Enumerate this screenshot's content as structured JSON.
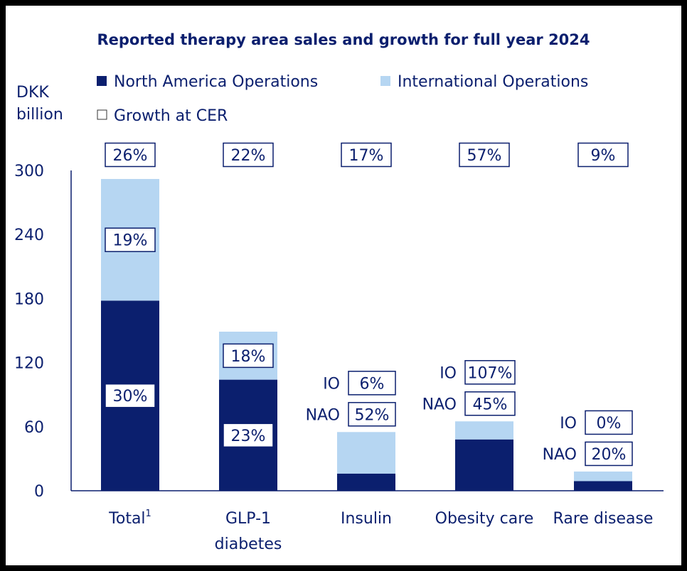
{
  "chart_data": {
    "type": "bar",
    "stacked": true,
    "title": "Reported therapy area sales and growth for full year 2024",
    "ylabel_line1": "DKK",
    "ylabel_line2": "billion",
    "ylim": [
      0,
      300
    ],
    "yticks": [
      "0",
      "60",
      "120",
      "180",
      "240",
      "300"
    ],
    "legend": {
      "nao": "North America Operations",
      "io": "International Operations",
      "growth": "Growth at CER"
    },
    "colors": {
      "nao": "#0b1f6e",
      "io": "#b6d6f2",
      "text": "#0b1f6e"
    },
    "categories": [
      {
        "label1": "Total",
        "sup": "1",
        "label2": "",
        "nao": 178,
        "io": 114,
        "total_growth": "26%",
        "nao_growth": "30%",
        "io_growth": "19%",
        "growth_layout": "inside"
      },
      {
        "label1": "GLP-1",
        "sup": "",
        "label2": "diabetes",
        "nao": 104,
        "io": 45,
        "total_growth": "22%",
        "nao_growth": "23%",
        "io_growth": "18%",
        "growth_layout": "inside"
      },
      {
        "label1": "Insulin",
        "sup": "",
        "label2": "",
        "nao": 16,
        "io": 39,
        "total_growth": "17%",
        "nao_growth": "52%",
        "io_growth": "6%",
        "growth_layout": "above"
      },
      {
        "label1": "Obesity care",
        "sup": "",
        "label2": "",
        "nao": 48,
        "io": 17,
        "total_growth": "57%",
        "nao_growth": "45%",
        "io_growth": "107%",
        "growth_layout": "above"
      },
      {
        "label1": "Rare disease",
        "sup": "",
        "label2": "",
        "nao": 9,
        "io": 9,
        "total_growth": "9%",
        "nao_growth": "20%",
        "io_growth": "0%",
        "growth_layout": "above"
      }
    ],
    "above_labels": {
      "io": "IO",
      "nao": "NAO"
    }
  }
}
